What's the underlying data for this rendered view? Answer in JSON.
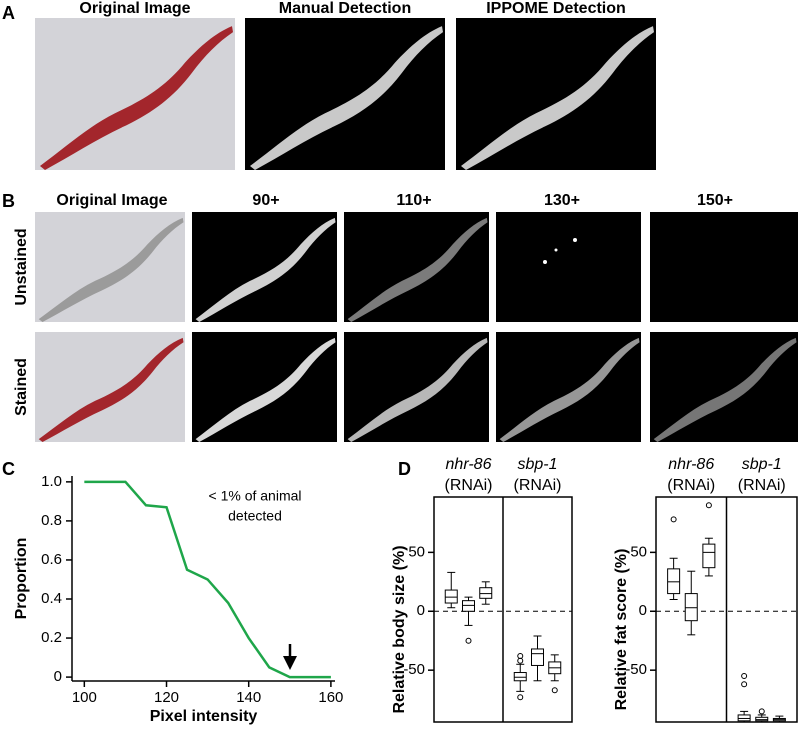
{
  "panel_a": {
    "label": "A",
    "titles": [
      "Original Image",
      "Manual Detection",
      "IPPOME Detection"
    ]
  },
  "panel_b": {
    "label": "B",
    "titles": [
      "Original Image",
      "90+",
      "110+",
      "130+",
      "150+"
    ],
    "rows": [
      "Unstained",
      "Stained"
    ]
  },
  "panel_c_label": "C",
  "panel_d_label": "D",
  "chart_data": [
    {
      "type": "line",
      "x_label": "Pixel intensity",
      "y_label": "Proportion",
      "annotation": [
        "< 1% of animal",
        "detected"
      ],
      "x": [
        100,
        110,
        115,
        120,
        125,
        130,
        135,
        140,
        145,
        150,
        160
      ],
      "values": [
        1,
        1,
        0.88,
        0.87,
        0.55,
        0.5,
        0.38,
        0.2,
        0.05,
        0,
        0
      ],
      "color": "#1fa64a",
      "xlim": [
        97,
        161
      ],
      "xticks": [
        100,
        120,
        140,
        160
      ],
      "ylim": [
        -0.02,
        1.03
      ],
      "yticks": [
        0,
        0.2,
        0.4,
        0.6,
        0.8,
        {
          "value": 1,
          "label": "1.0"
        }
      ]
    },
    {
      "type": "box",
      "y_label": "Relative body size (%)",
      "ylim": [
        -94,
        97
      ],
      "yticks": [
        -50,
        0,
        50
      ],
      "hline": 0,
      "groups": [
        {
          "name": "nhr-86",
          "suffix": "(RNAi)",
          "boxes": [
            {
              "min": 3,
              "q1": 7,
              "median": 12,
              "q3": 18,
              "max": 33,
              "outliers": []
            },
            {
              "min": -12,
              "q1": 0,
              "median": 5,
              "q3": 9,
              "max": 12,
              "outliers": [
                -25
              ]
            },
            {
              "min": 6,
              "q1": 11,
              "median": 15,
              "q3": 20,
              "max": 25,
              "outliers": []
            }
          ]
        },
        {
          "name": "sbp-1",
          "suffix": "(RNAi)",
          "boxes": [
            {
              "min": -68,
              "q1": -59,
              "median": -56,
              "q3": -52,
              "max": -45,
              "outliers": [
                -38,
                -42,
                -73
              ]
            },
            {
              "min": -59,
              "q1": -46,
              "median": -36,
              "q3": -32,
              "max": -21,
              "outliers": []
            },
            {
              "min": -59,
              "q1": -53,
              "median": -48,
              "q3": -43,
              "max": -37,
              "outliers": [
                -67
              ]
            }
          ]
        }
      ]
    },
    {
      "type": "box",
      "y_label": "Relative fat score (%)",
      "ylim": [
        -94,
        97
      ],
      "yticks": [
        -50,
        0,
        50
      ],
      "hline": 0,
      "groups": [
        {
          "name": "nhr-86",
          "suffix": "(RNAi)",
          "boxes": [
            {
              "min": 10,
              "q1": 15,
              "median": 25,
              "q3": 36,
              "max": 45,
              "outliers": [
                78
              ]
            },
            {
              "min": -20,
              "q1": -8,
              "median": 3,
              "q3": 15,
              "max": 34,
              "outliers": []
            },
            {
              "min": 30,
              "q1": 37,
              "median": 50,
              "q3": 57,
              "max": 62,
              "outliers": [
                90
              ]
            }
          ]
        },
        {
          "name": "sbp-1",
          "suffix": "(RNAi)",
          "boxes": [
            {
              "min": -94,
              "q1": -93,
              "median": -91,
              "q3": -88,
              "max": -85,
              "outliers": [
                -55,
                -62
              ]
            },
            {
              "min": -94,
              "q1": -93,
              "median": -92,
              "q3": -90,
              "max": -88,
              "outliers": [
                -85
              ]
            },
            {
              "min": -94,
              "q1": -93,
              "median": -92,
              "q3": -91,
              "max": -89,
              "outliers": []
            }
          ]
        }
      ]
    }
  ]
}
